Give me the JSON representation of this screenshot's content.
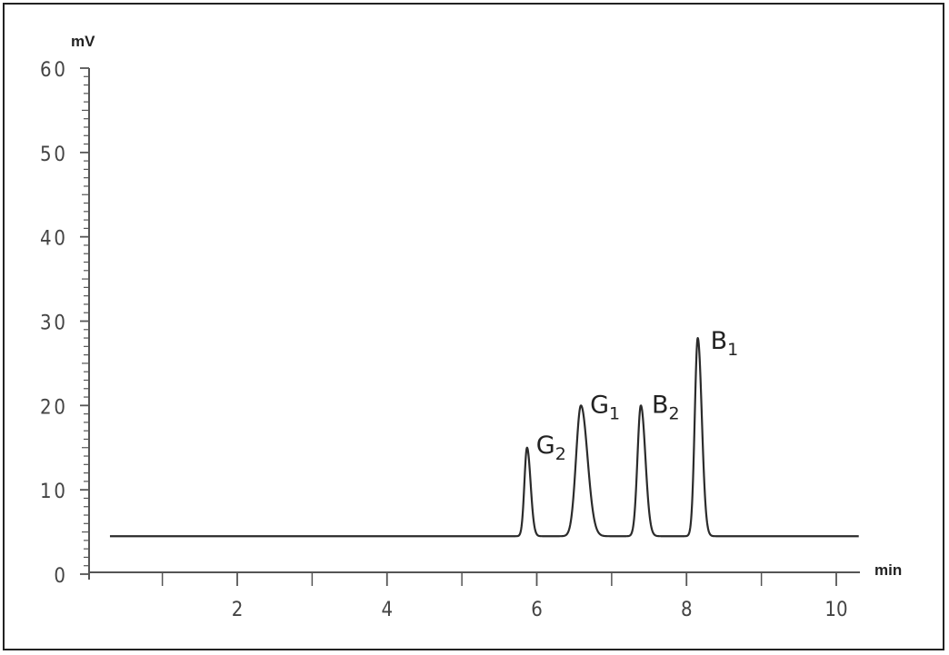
{
  "chart_data": {
    "type": "line",
    "xlabel": "min",
    "ylabel": "mV",
    "xlim": [
      0.3,
      10.3
    ],
    "ylim": [
      0,
      60
    ],
    "x_ticks": [
      2,
      4,
      6,
      8,
      10
    ],
    "x_minor_ticks": [
      1,
      3,
      5,
      7,
      9
    ],
    "y_ticks": [
      0,
      10,
      20,
      30,
      40,
      50,
      60
    ],
    "y_minor_step": 1,
    "grid": false,
    "baseline": 4.5,
    "peaks": [
      {
        "name": "G",
        "sub": "2",
        "rt": 5.87,
        "height": 15,
        "width": 0.035
      },
      {
        "name": "G",
        "sub": "1",
        "rt": 6.59,
        "height": 20,
        "width": 0.065
      },
      {
        "name": "B",
        "sub": "2",
        "rt": 7.39,
        "height": 20,
        "width": 0.045
      },
      {
        "name": "B",
        "sub": "1",
        "rt": 8.15,
        "height": 28,
        "width": 0.04
      }
    ],
    "colors": {
      "trace": "#2b2b2b",
      "axis": "#555555",
      "text": "#222222"
    }
  }
}
